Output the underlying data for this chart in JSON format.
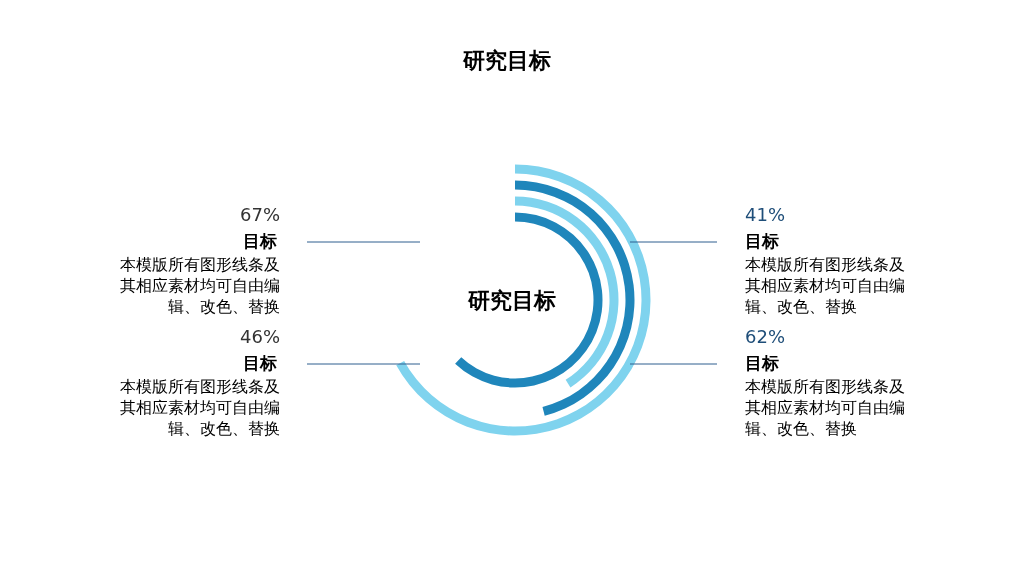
{
  "chart_data": {
    "type": "other",
    "title": "研究目标",
    "categories": [
      "目标",
      "目标",
      "目标",
      "目标"
    ],
    "values": [
      67,
      46,
      41,
      62
    ],
    "value_labels": [
      "67%",
      "46%",
      "41%",
      "62%"
    ],
    "colors": [
      "#7fd3ee",
      "#1f86bb",
      "#7fd3ee",
      "#1f86bb"
    ],
    "annotations": [
      "研究目标",
      "本模版所有图形线条及其相应素材均可自由编辑、改色、替换",
      "本模版所有图形线条及其相应素材均可自由编辑、改色、替换",
      "本模版所有图形线条及其相应素材均可自由编辑、改色、替换",
      "本模版所有图形线条及其相应素材均可自由编辑、改色、替换"
    ]
  }
}
